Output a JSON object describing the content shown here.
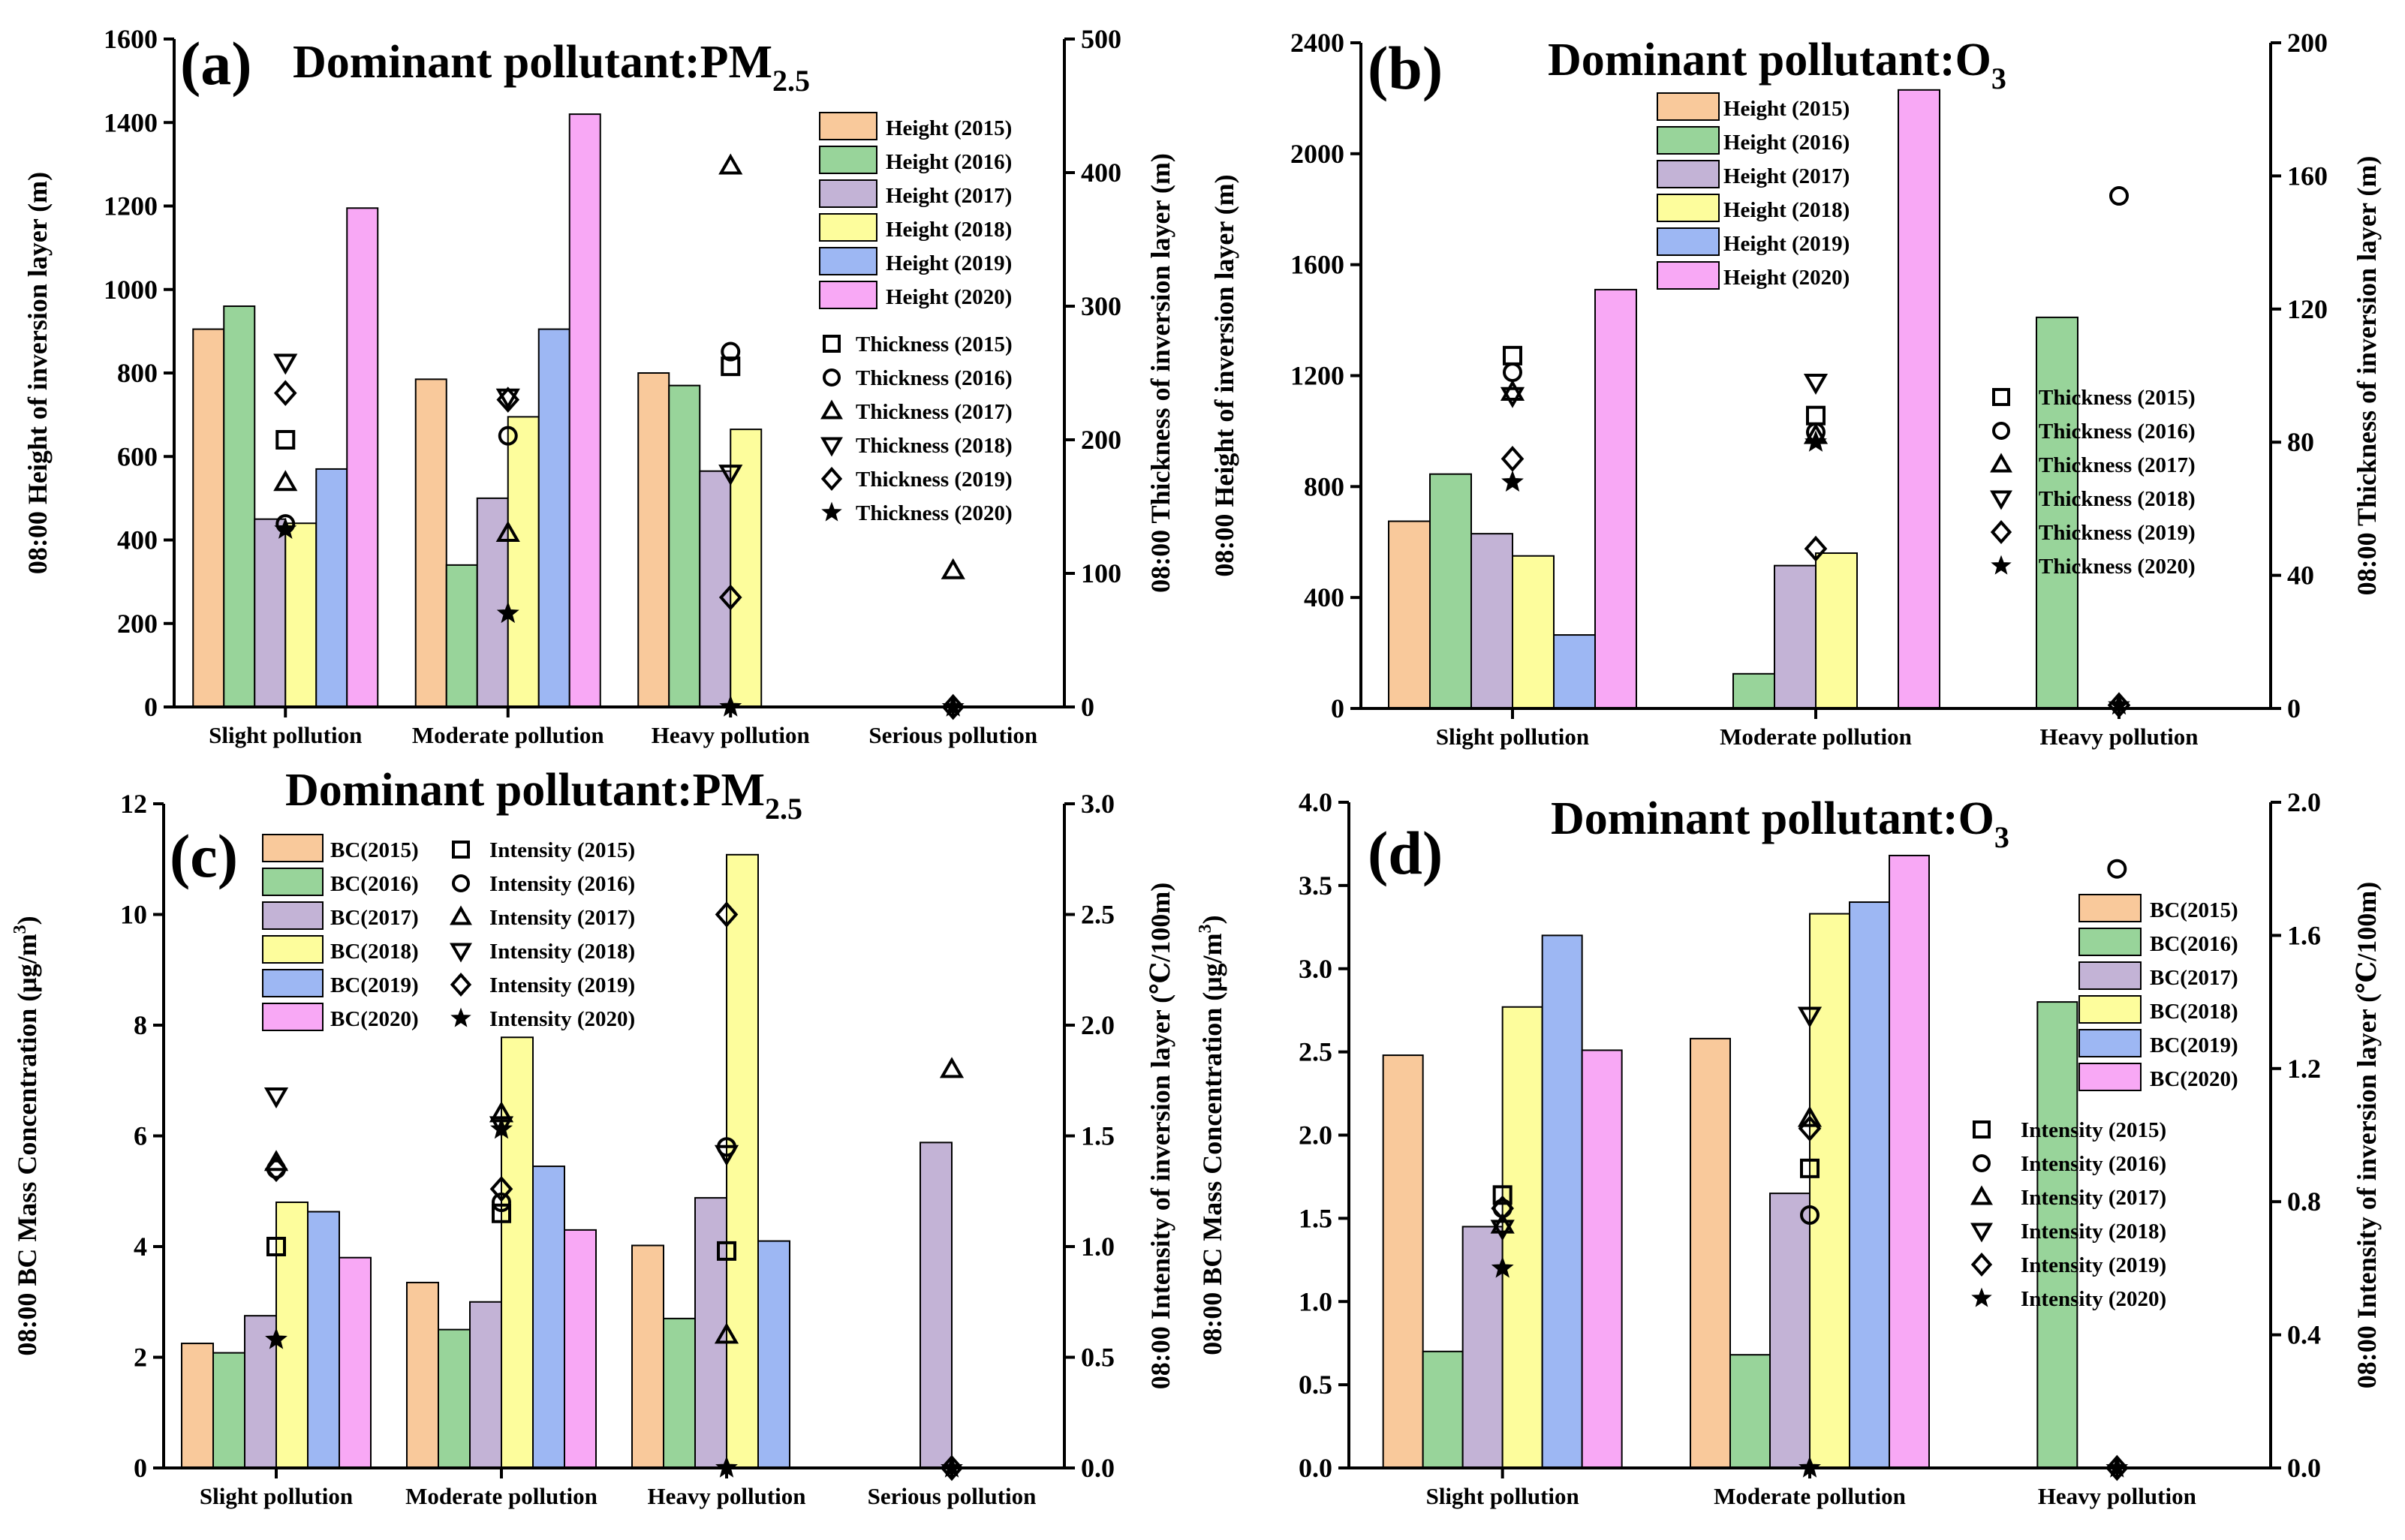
{
  "figure": {
    "description_free": true
  },
  "colors": {
    "y2015": "#F9C99B",
    "y2016": "#98D49A",
    "y2017": "#C3B3D6",
    "y2018": "#FDFD9C",
    "y2019": "#9DB7F3",
    "y2020": "#F8A8F5",
    "edge": "#000000"
  },
  "chart_data": [
    {
      "type": "bar",
      "panel_label": "(a)",
      "title": "Dominant pollutant:PM",
      "title_sub": "2.5",
      "categories": [
        "Slight pollution",
        "Moderate pollution",
        "Heavy pollution",
        "Serious pollution"
      ],
      "ylabel": "08:00 Height of inversion layer (m)",
      "ylim": [
        0,
        1600
      ],
      "yticks": [
        0,
        200,
        400,
        600,
        800,
        1000,
        1200,
        1400,
        1600
      ],
      "ylabel_right": "08:00 Thickness of inversion layer (m)",
      "ylim_right": [
        0,
        500
      ],
      "yticks_right": [
        0,
        100,
        200,
        300,
        400,
        500
      ],
      "series": [
        {
          "name": "Height (2015)",
          "values": [
            905,
            785,
            800,
            null
          ]
        },
        {
          "name": "Height (2016)",
          "values": [
            960,
            340,
            770,
            null
          ]
        },
        {
          "name": "Height (2017)",
          "values": [
            450,
            500,
            565,
            null
          ]
        },
        {
          "name": "Height (2018)",
          "values": [
            440,
            695,
            665,
            null
          ]
        },
        {
          "name": "Height (2019)",
          "values": [
            570,
            905,
            null,
            null
          ]
        },
        {
          "name": "Height (2020)",
          "values": [
            1195,
            1420,
            null,
            null
          ]
        }
      ],
      "scatter_series": [
        {
          "name": "Thickness (2015)",
          "marker": "square",
          "values": [
            200,
            null,
            255,
            null
          ]
        },
        {
          "name": "Thickness (2016)",
          "marker": "circle",
          "values": [
            137,
            203,
            266,
            null
          ]
        },
        {
          "name": "Thickness (2017)",
          "marker": "triangle-up",
          "values": [
            168,
            130,
            405,
            102
          ]
        },
        {
          "name": "Thickness (2018)",
          "marker": "triangle-down",
          "values": [
            258,
            232,
            175,
            null
          ]
        },
        {
          "name": "Thickness (2019)",
          "marker": "diamond",
          "values": [
            235,
            230,
            82,
            0
          ]
        },
        {
          "name": "Thickness (2020)",
          "marker": "star",
          "values": [
            133,
            70,
            0,
            0
          ]
        }
      ],
      "legend_position": "top-right"
    },
    {
      "type": "bar",
      "panel_label": "(b)",
      "title": "Dominant pollutant:O",
      "title_sub": "3",
      "categories": [
        "Slight pollution",
        "Moderate pollution",
        "Heavy pollution"
      ],
      "ylabel": "08:00 Height of inversion layer (m)",
      "ylim": [
        0,
        2400
      ],
      "yticks": [
        0,
        400,
        800,
        1200,
        1600,
        2000,
        2400
      ],
      "ylabel_right": "08:00 Thickness of inversion layer (m)",
      "ylim_right": [
        0,
        200
      ],
      "yticks_right": [
        0,
        40,
        80,
        120,
        160,
        200
      ],
      "series": [
        {
          "name": "Height (2015)",
          "values": [
            675,
            null,
            null
          ]
        },
        {
          "name": "Height (2016)",
          "values": [
            845,
            125,
            1410
          ]
        },
        {
          "name": "Height (2017)",
          "values": [
            630,
            515,
            null
          ]
        },
        {
          "name": "Height (2018)",
          "values": [
            550,
            560,
            null
          ]
        },
        {
          "name": "Height (2019)",
          "values": [
            265,
            null,
            null
          ]
        },
        {
          "name": "Height (2020)",
          "values": [
            1510,
            2230,
            null
          ]
        }
      ],
      "scatter_series": [
        {
          "name": "Thickness (2015)",
          "marker": "square",
          "values": [
            106,
            88,
            null
          ]
        },
        {
          "name": "Thickness (2016)",
          "marker": "circle",
          "values": [
            101,
            83,
            154
          ]
        },
        {
          "name": "Thickness (2017)",
          "marker": "triangle-up",
          "values": [
            95,
            82,
            null
          ]
        },
        {
          "name": "Thickness (2018)",
          "marker": "triangle-down",
          "values": [
            94,
            98,
            null
          ]
        },
        {
          "name": "Thickness (2019)",
          "marker": "diamond",
          "values": [
            75,
            48,
            1
          ]
        },
        {
          "name": "Thickness (2020)",
          "marker": "star",
          "values": [
            68,
            80,
            1
          ]
        }
      ],
      "legend_position": "top-center"
    },
    {
      "type": "bar",
      "panel_label": "(c)",
      "title": "Dominant pollutant:PM",
      "title_sub": "2.5",
      "categories": [
        "Slight pollution",
        "Moderate pollution",
        "Heavy pollution",
        "Serious pollution"
      ],
      "ylabel": "08:00 BC Mass Concentration (μg/m",
      "ylabel_sup": "3",
      "ylabel_end": ")",
      "ylim": [
        0,
        12
      ],
      "yticks": [
        0,
        2,
        4,
        6,
        8,
        10,
        12
      ],
      "ylabel_right": "08:00 Intensity of inversion layer (℃/100m)",
      "ylim_right": [
        0,
        3.0
      ],
      "yticks_right": [
        "0.0",
        "0.5",
        "1.0",
        "1.5",
        "2.0",
        "2.5",
        "3.0"
      ],
      "series": [
        {
          "name": "BC(2015)",
          "values": [
            2.25,
            3.35,
            4.02,
            null
          ]
        },
        {
          "name": "BC(2016)",
          "values": [
            2.08,
            2.5,
            2.7,
            null
          ]
        },
        {
          "name": "BC(2017)",
          "values": [
            2.75,
            3.0,
            4.88,
            5.88
          ]
        },
        {
          "name": "BC(2018)",
          "values": [
            4.8,
            7.78,
            11.08,
            null
          ]
        },
        {
          "name": "BC(2019)",
          "values": [
            4.63,
            5.45,
            4.1,
            null
          ]
        },
        {
          "name": "BC(2020)",
          "values": [
            3.8,
            4.3,
            null,
            null
          ]
        }
      ],
      "scatter_series": [
        {
          "name": "Intensity (2015)",
          "marker": "square",
          "values": [
            1.0,
            1.15,
            0.98,
            null
          ]
        },
        {
          "name": "Intensity (2016)",
          "marker": "circle",
          "values": [
            1.35,
            1.2,
            1.45,
            null
          ]
        },
        {
          "name": "Intensity (2017)",
          "marker": "triangle-up",
          "values": [
            1.38,
            1.6,
            0.6,
            1.8
          ]
        },
        {
          "name": "Intensity (2018)",
          "marker": "triangle-down",
          "values": [
            1.68,
            1.55,
            1.42,
            null
          ]
        },
        {
          "name": "Intensity (2019)",
          "marker": "diamond",
          "values": [
            1.35,
            1.26,
            2.5,
            0.0
          ]
        },
        {
          "name": "Intensity (2020)",
          "marker": "star",
          "values": [
            0.58,
            1.53,
            0.0,
            0.0
          ]
        }
      ],
      "legend_position": "top-left"
    },
    {
      "type": "bar",
      "panel_label": "(d)",
      "title": "Dominant pollutant:O",
      "title_sub": "3",
      "categories": [
        "Slight pollution",
        "Moderate pollution",
        "Heavy pollution"
      ],
      "ylabel": "08:00 BC Mass Concentration (μg/m",
      "ylabel_sup": "3",
      "ylabel_end": ")",
      "ylim": [
        0,
        4.0
      ],
      "yticks": [
        "0.0",
        "0.5",
        "1.0",
        "1.5",
        "2.0",
        "2.5",
        "3.0",
        "3.5",
        "4.0"
      ],
      "ylabel_right": "08:00 Intensity of inversion layer (℃/100m)",
      "ylim_right": [
        0,
        2.0
      ],
      "yticks_right": [
        "0.0",
        "0.4",
        "0.8",
        "1.2",
        "1.6",
        "2.0"
      ],
      "series": [
        {
          "name": "BC(2015)",
          "values": [
            2.48,
            2.58,
            null
          ]
        },
        {
          "name": "BC(2016)",
          "values": [
            0.7,
            0.68,
            2.8
          ]
        },
        {
          "name": "BC(2017)",
          "values": [
            1.45,
            1.65,
            null
          ]
        },
        {
          "name": "BC(2018)",
          "values": [
            2.77,
            3.33,
            null
          ]
        },
        {
          "name": "BC(2019)",
          "values": [
            3.2,
            3.4,
            null
          ]
        },
        {
          "name": "BC(2020)",
          "values": [
            2.51,
            3.68,
            null
          ]
        }
      ],
      "scatter_series": [
        {
          "name": "Intensity (2015)",
          "marker": "square",
          "values": [
            0.82,
            0.9,
            null
          ]
        },
        {
          "name": "Intensity (2016)",
          "marker": "circle",
          "values": [
            0.78,
            0.76,
            1.8
          ]
        },
        {
          "name": "Intensity (2017)",
          "marker": "triangle-up",
          "values": [
            0.73,
            1.05,
            null
          ]
        },
        {
          "name": "Intensity (2018)",
          "marker": "triangle-down",
          "values": [
            0.72,
            1.36,
            null
          ]
        },
        {
          "name": "Intensity (2019)",
          "marker": "diamond",
          "values": [
            0.78,
            1.02,
            0.0
          ]
        },
        {
          "name": "Intensity (2020)",
          "marker": "star",
          "values": [
            0.6,
            0.0,
            0.0
          ]
        }
      ],
      "legend_position": "right"
    }
  ]
}
